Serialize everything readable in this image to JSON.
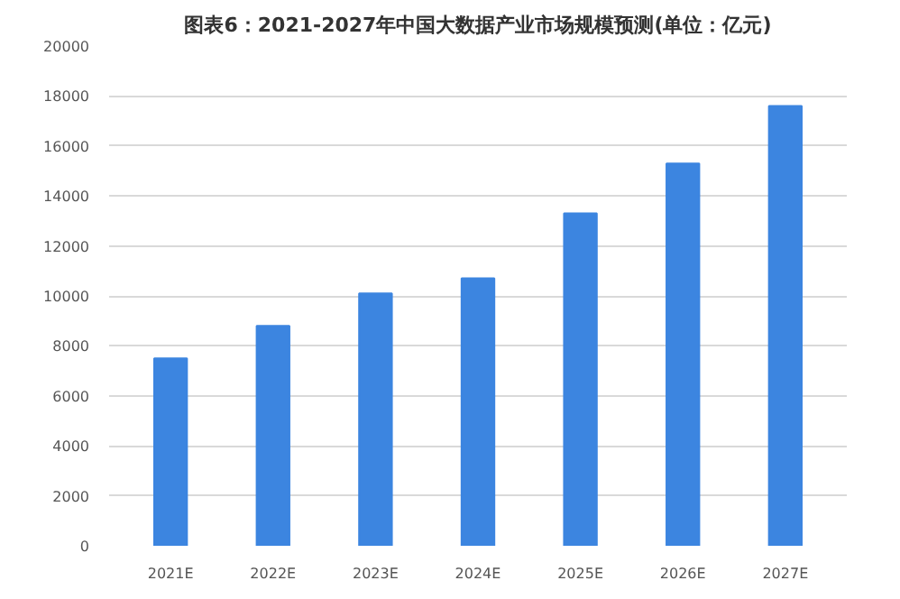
{
  "chart_data": {
    "type": "bar",
    "title": "图表6：2021-2027年中国大数据产业市场规模预测(单位：亿元)",
    "categories": [
      "2021E",
      "2022E",
      "2023E",
      "2024E",
      "2025E",
      "2026E",
      "2027E"
    ],
    "values": [
      7500,
      8800,
      10100,
      10700,
      13300,
      15300,
      17600
    ],
    "color": "#3c85e0",
    "ylim": [
      0,
      20000
    ],
    "yticks": [
      0,
      2000,
      4000,
      6000,
      8000,
      10000,
      12000,
      14000,
      16000,
      18000,
      20000
    ],
    "grid": "y"
  }
}
